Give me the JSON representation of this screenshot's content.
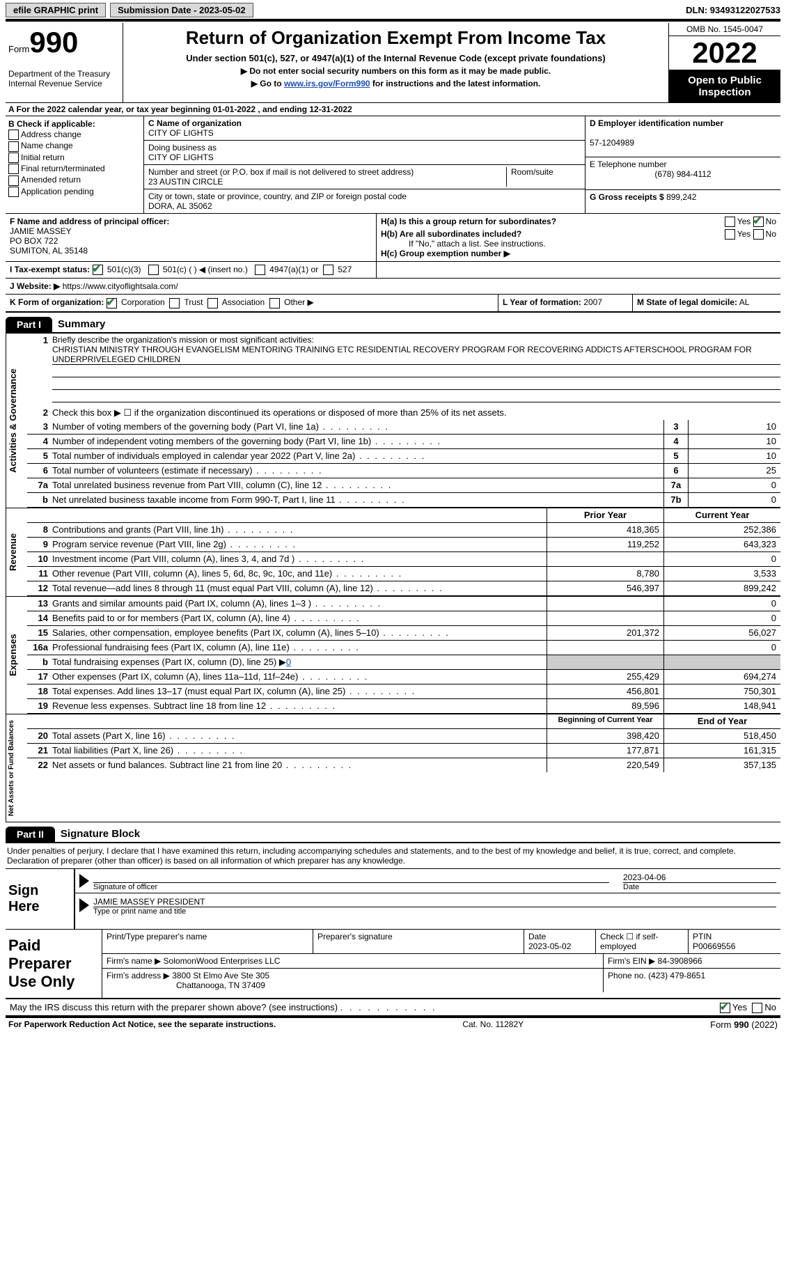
{
  "topbar": {
    "efile": "efile GRAPHIC print",
    "submission_label": "Submission Date - 2023-05-02",
    "dln": "DLN: 93493122027533"
  },
  "header": {
    "form_label": "Form",
    "form_number": "990",
    "title": "Return of Organization Exempt From Income Tax",
    "sub1": "Under section 501(c), 527, or 4947(a)(1) of the Internal Revenue Code (except private foundations)",
    "sub2": "▶ Do not enter social security numbers on this form as it may be made public.",
    "sub3_pre": "▶ Go to ",
    "sub3_link": "www.irs.gov/Form990",
    "sub3_post": " for instructions and the latest information.",
    "dept": "Department of the Treasury Internal Revenue Service",
    "omb": "OMB No. 1545-0047",
    "year": "2022",
    "open": "Open to Public Inspection"
  },
  "A": {
    "text": "A For the 2022 calendar year, or tax year beginning 01-01-2022    , and ending 12-31-2022"
  },
  "B": {
    "label": "B Check if applicable:",
    "opts": [
      "Address change",
      "Name change",
      "Initial return",
      "Final return/terminated",
      "Amended return",
      "Application pending"
    ]
  },
  "C": {
    "name_label": "C Name of organization",
    "name": "CITY OF LIGHTS",
    "dba_label": "Doing business as",
    "dba": "CITY OF LIGHTS",
    "street_label": "Number and street (or P.O. box if mail is not delivered to street address)",
    "room_label": "Room/suite",
    "street": "23 AUSTIN CIRCLE",
    "city_label": "City or town, state or province, country, and ZIP or foreign postal code",
    "city": "DORA, AL  35062"
  },
  "D": {
    "label": "D Employer identification number",
    "value": "57-1204989"
  },
  "E": {
    "label": "E Telephone number",
    "value": "(678) 984-4112"
  },
  "G": {
    "label": "G Gross receipts $",
    "value": "899,242"
  },
  "F": {
    "label": "F  Name and address of principal officer:",
    "name": "JAMIE MASSEY",
    "addr1": "PO BOX 722",
    "addr2": "SUMITON, AL  35148"
  },
  "H": {
    "a": "H(a)  Is this a group return for subordinates?",
    "b": "H(b)  Are all subordinates included?",
    "b_note": "If \"No,\" attach a list. See instructions.",
    "c": "H(c)  Group exemption number ▶",
    "yes": "Yes",
    "no": "No"
  },
  "I": {
    "label": "I   Tax-exempt status:",
    "opt1": "501(c)(3)",
    "opt2": "501(c) (  ) ◀ (insert no.)",
    "opt3": "4947(a)(1) or",
    "opt4": "527"
  },
  "J": {
    "label": "J  Website: ▶",
    "value": "https://www.cityoflightsala.com/"
  },
  "K": {
    "label": "K Form of organization:",
    "opts": [
      "Corporation",
      "Trust",
      "Association",
      "Other ▶"
    ]
  },
  "L": {
    "label": "L Year of formation:",
    "value": "2007"
  },
  "M": {
    "label": "M State of legal domicile:",
    "value": "AL"
  },
  "parts": {
    "p1": "Part I",
    "p1_title": "Summary",
    "p2": "Part II",
    "p2_title": "Signature Block"
  },
  "summary": {
    "sec1_label": "Activities & Governance",
    "sec2_label": "Revenue",
    "sec3_label": "Expenses",
    "sec4_label": "Net Assets or Fund Balances",
    "line1": "Briefly describe the organization's mission or most significant activities:",
    "mission": "CHRISTIAN MINISTRY THROUGH EVANGELISM MENTORING TRAINING ETC RESIDENTIAL RECOVERY PROGRAM FOR RECOVERING ADDICTS AFTERSCHOOL PROGRAM FOR UNDERPRIVELEGED CHILDREN",
    "line2": "Check this box ▶ ☐  if the organization discontinued its operations or disposed of more than 25% of its net assets.",
    "rows_single": [
      {
        "n": "3",
        "d": "Number of voting members of the governing body (Part VI, line 1a)",
        "k": "3",
        "v": "10"
      },
      {
        "n": "4",
        "d": "Number of independent voting members of the governing body (Part VI, line 1b)",
        "k": "4",
        "v": "10"
      },
      {
        "n": "5",
        "d": "Total number of individuals employed in calendar year 2022 (Part V, line 2a)",
        "k": "5",
        "v": "10"
      },
      {
        "n": "6",
        "d": "Total number of volunteers (estimate if necessary)",
        "k": "6",
        "v": "25"
      },
      {
        "n": "7a",
        "d": "Total unrelated business revenue from Part VIII, column (C), line 12",
        "k": "7a",
        "v": "0"
      },
      {
        "n": "b",
        "d": "Net unrelated business taxable income from Form 990-T, Part I, line 11",
        "k": "7b",
        "v": "0"
      }
    ],
    "col_prior": "Prior Year",
    "col_current": "Current Year",
    "rows_double": [
      {
        "n": "8",
        "d": "Contributions and grants (Part VIII, line 1h)",
        "py": "418,365",
        "cy": "252,386"
      },
      {
        "n": "9",
        "d": "Program service revenue (Part VIII, line 2g)",
        "py": "119,252",
        "cy": "643,323"
      },
      {
        "n": "10",
        "d": "Investment income (Part VIII, column (A), lines 3, 4, and 7d )",
        "py": "",
        "cy": "0"
      },
      {
        "n": "11",
        "d": "Other revenue (Part VIII, column (A), lines 5, 6d, 8c, 9c, 10c, and 11e)",
        "py": "8,780",
        "cy": "3,533"
      },
      {
        "n": "12",
        "d": "Total revenue—add lines 8 through 11 (must equal Part VIII, column (A), line 12)",
        "py": "546,397",
        "cy": "899,242"
      }
    ],
    "rows_exp": [
      {
        "n": "13",
        "d": "Grants and similar amounts paid (Part IX, column (A), lines 1–3 )",
        "py": "",
        "cy": "0"
      },
      {
        "n": "14",
        "d": "Benefits paid to or for members (Part IX, column (A), line 4)",
        "py": "",
        "cy": "0"
      },
      {
        "n": "15",
        "d": "Salaries, other compensation, employee benefits (Part IX, column (A), lines 5–10)",
        "py": "201,372",
        "cy": "56,027"
      },
      {
        "n": "16a",
        "d": "Professional fundraising fees (Part IX, column (A), line 11e)",
        "py": "",
        "cy": "0"
      }
    ],
    "line16b": "Total fundraising expenses (Part IX, column (D), line 25) ▶",
    "line16b_val": "0",
    "rows_exp2": [
      {
        "n": "17",
        "d": "Other expenses (Part IX, column (A), lines 11a–11d, 11f–24e)",
        "py": "255,429",
        "cy": "694,274"
      },
      {
        "n": "18",
        "d": "Total expenses. Add lines 13–17 (must equal Part IX, column (A), line 25)",
        "py": "456,801",
        "cy": "750,301"
      },
      {
        "n": "19",
        "d": "Revenue less expenses. Subtract line 18 from line 12",
        "py": "89,596",
        "cy": "148,941"
      }
    ],
    "col_begin": "Beginning of Current Year",
    "col_end": "End of Year",
    "rows_net": [
      {
        "n": "20",
        "d": "Total assets (Part X, line 16)",
        "py": "398,420",
        "cy": "518,450"
      },
      {
        "n": "21",
        "d": "Total liabilities (Part X, line 26)",
        "py": "177,871",
        "cy": "161,315"
      },
      {
        "n": "22",
        "d": "Net assets or fund balances. Subtract line 21 from line 20",
        "py": "220,549",
        "cy": "357,135"
      }
    ]
  },
  "sig": {
    "perjury": "Under penalties of perjury, I declare that I have examined this return, including accompanying schedules and statements, and to the best of my knowledge and belief, it is true, correct, and complete. Declaration of preparer (other than officer) is based on all information of which preparer has any knowledge.",
    "sign_here": "Sign Here",
    "sig_officer": "Signature of officer",
    "date": "Date",
    "date_val": "2023-04-06",
    "name_title": "JAMIE MASSEY PRESIDENT",
    "type_print": "Type or print name and title"
  },
  "paid": {
    "label": "Paid Preparer Use Only",
    "print_name": "Print/Type preparer's name",
    "prep_sig": "Preparer's signature",
    "date_l": "Date",
    "date_v": "2023-05-02",
    "check": "Check ☐ if self-employed",
    "ptin_l": "PTIN",
    "ptin_v": "P00669556",
    "firm_name_l": "Firm's name    ▶",
    "firm_name": "SolomonWood Enterprises LLC",
    "firm_ein_l": "Firm's EIN ▶",
    "firm_ein": "84-3908966",
    "firm_addr_l": "Firm's address ▶",
    "firm_addr": "3800 St Elmo Ave Ste 305",
    "firm_city": "Chattanooga, TN  37409",
    "phone_l": "Phone no.",
    "phone": "(423) 479-8651",
    "discuss": "May the IRS discuss this return with the preparer shown above? (see instructions)",
    "yes": "Yes",
    "no": "No"
  },
  "footer": {
    "left": "For Paperwork Reduction Act Notice, see the separate instructions.",
    "mid": "Cat. No. 11282Y",
    "right": "Form 990 (2022)"
  }
}
